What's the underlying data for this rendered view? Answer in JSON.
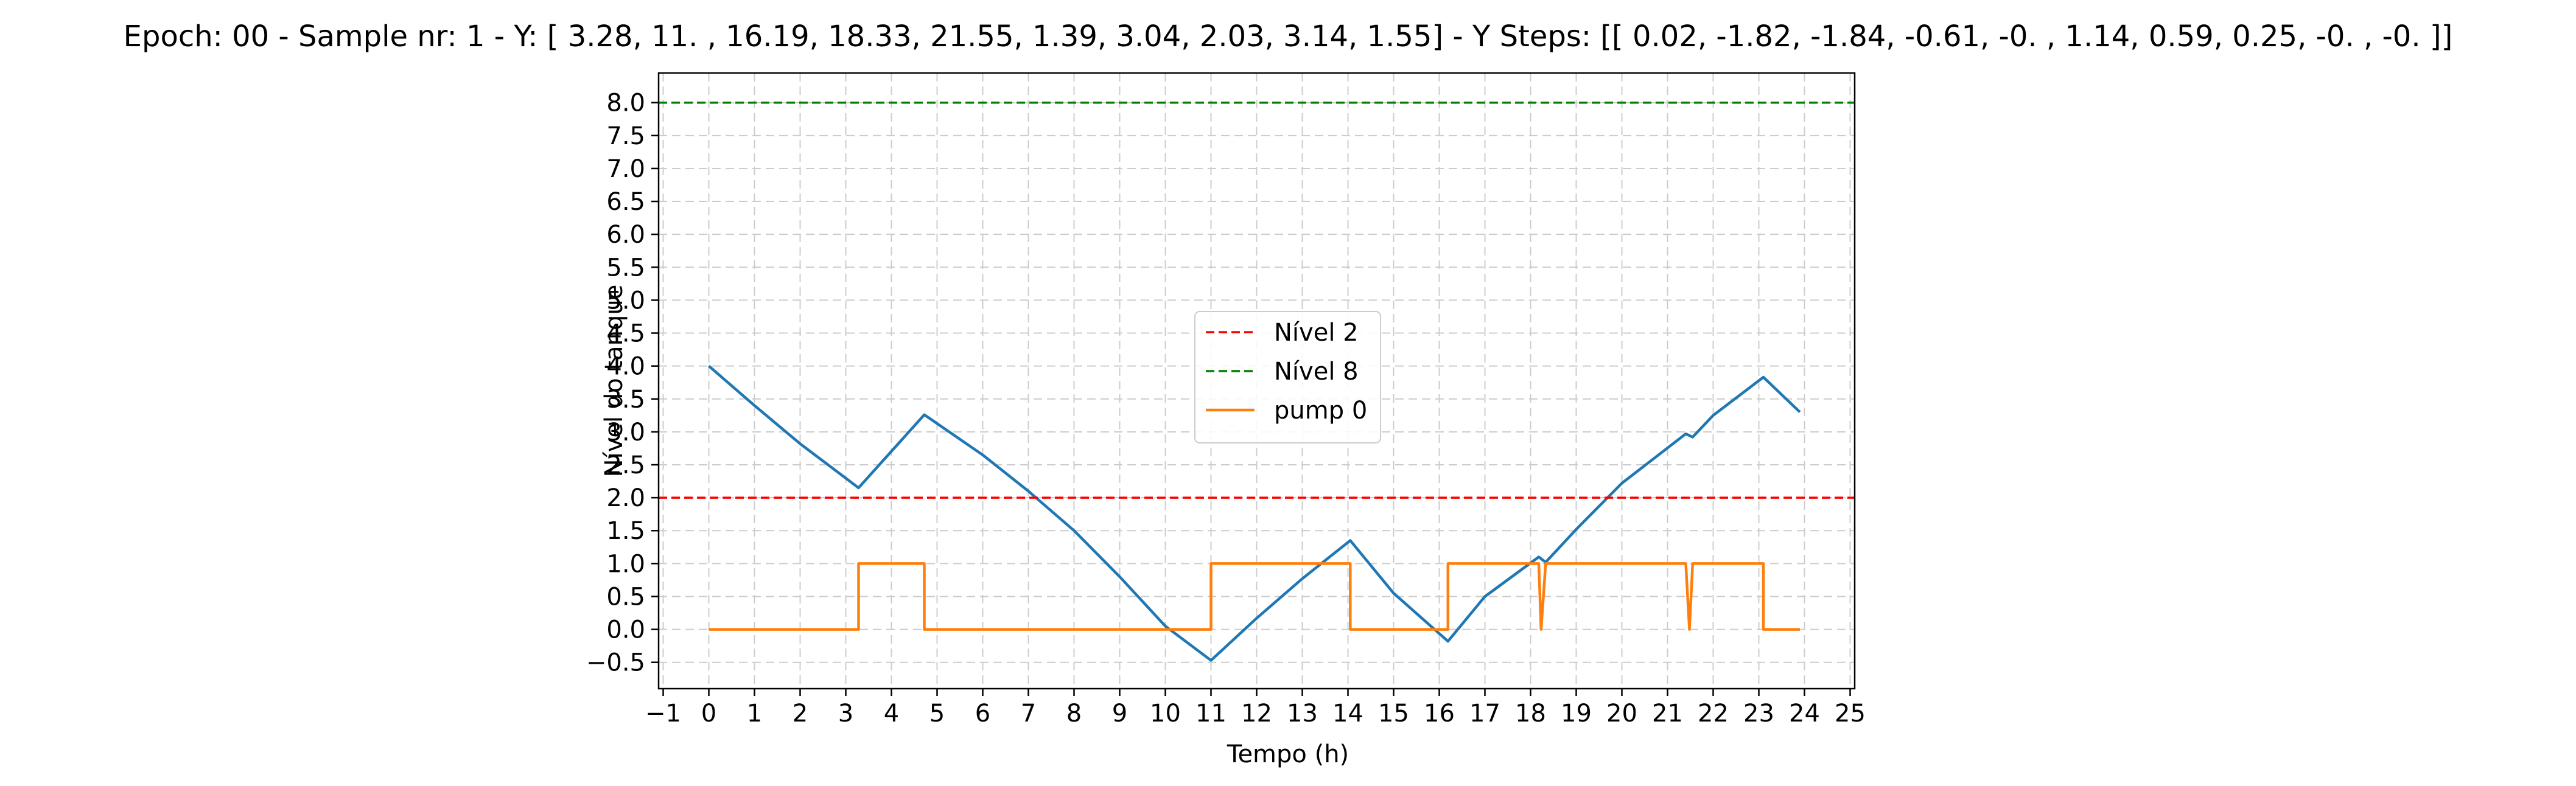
{
  "chart_data": {
    "type": "line",
    "title": "Epoch: 00 - Sample nr: 1 - Y: [ 3.28, 11.  , 16.19, 18.33, 21.55,  1.39,  3.04,  2.03,  3.14,  1.55] - Y Steps: [[ 0.02, -1.82, -1.84, -0.61, -0.  ,  1.14,  0.59,  0.25, -0.  , -0.  ]]",
    "xlabel": "Tempo (h)",
    "ylabel": "Nível do tanque",
    "xlim": [
      -1.1,
      25.1
    ],
    "ylim": [
      -0.9,
      8.45
    ],
    "x_ticks": [
      -1,
      0,
      1,
      2,
      3,
      4,
      5,
      6,
      7,
      8,
      9,
      10,
      11,
      12,
      13,
      14,
      15,
      16,
      17,
      18,
      19,
      20,
      21,
      22,
      23,
      24,
      25
    ],
    "x_tick_labels": [
      "−1",
      "0",
      "1",
      "2",
      "3",
      "4",
      "5",
      "6",
      "7",
      "8",
      "9",
      "10",
      "11",
      "12",
      "13",
      "14",
      "15",
      "16",
      "17",
      "18",
      "19",
      "20",
      "21",
      "22",
      "23",
      "24",
      "25"
    ],
    "y_ticks": [
      -0.5,
      0.0,
      0.5,
      1.0,
      1.5,
      2.0,
      2.5,
      3.0,
      3.5,
      4.0,
      4.5,
      5.0,
      5.5,
      6.0,
      6.5,
      7.0,
      7.5,
      8.0
    ],
    "y_tick_labels": [
      "−0.5",
      "0.0",
      "0.5",
      "1.0",
      "1.5",
      "2.0",
      "2.5",
      "3.0",
      "3.5",
      "4.0",
      "4.5",
      "5.0",
      "5.5",
      "6.0",
      "6.5",
      "7.0",
      "7.5",
      "8.0"
    ],
    "grid": true,
    "legend_position": "center",
    "series": [
      {
        "color": "#1f77b4",
        "style": "solid",
        "in_legend": false,
        "x": [
          0,
          1,
          2,
          3.28,
          4.72,
          6,
          7,
          8,
          9,
          10,
          11,
          12,
          13,
          14.05,
          15,
          16.19,
          17,
          18.18,
          18.33,
          19,
          20,
          21.4,
          21.55,
          22,
          23.1,
          23.9
        ],
        "y": [
          4.0,
          3.4,
          2.82,
          2.15,
          3.26,
          2.65,
          2.1,
          1.5,
          0.8,
          0.05,
          -0.47,
          0.17,
          0.77,
          1.35,
          0.55,
          -0.18,
          0.5,
          1.1,
          1.02,
          1.52,
          2.22,
          2.97,
          2.92,
          3.25,
          3.83,
          3.3
        ]
      },
      {
        "name": "Nível 2",
        "color": "#ff0000",
        "style": "dashed",
        "in_legend": true,
        "x": [
          -1.1,
          25.1
        ],
        "y": [
          2.0,
          2.0
        ]
      },
      {
        "name": "Nível 8",
        "color": "#008000",
        "style": "dashed",
        "in_legend": true,
        "x": [
          -1.1,
          25.1
        ],
        "y": [
          8.0,
          8.0
        ]
      },
      {
        "name": "pump 0",
        "color": "#ff7f0e",
        "style": "solid",
        "in_legend": true,
        "x": [
          0,
          3.28,
          3.28,
          4.72,
          4.72,
          11.0,
          11.0,
          14.05,
          14.05,
          16.19,
          16.19,
          18.18,
          18.23,
          18.33,
          21.4,
          21.48,
          21.55,
          23.1,
          23.1,
          23.9
        ],
        "y": [
          0,
          0,
          1,
          1,
          0,
          0,
          1,
          1,
          0,
          0,
          1,
          1,
          0,
          1,
          1,
          0,
          1,
          1,
          0,
          0
        ]
      }
    ]
  }
}
